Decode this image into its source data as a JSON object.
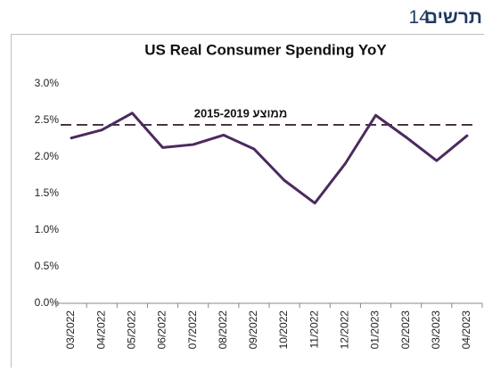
{
  "header": {
    "label": "תרשים",
    "number": "14"
  },
  "chart_data": {
    "type": "line",
    "title": "US Real Consumer Spending YoY",
    "categories": [
      "03/2022",
      "04/2022",
      "05/2022",
      "06/2022",
      "07/2022",
      "08/2022",
      "09/2022",
      "10/2022",
      "11/2022",
      "12/2022",
      "01/2023",
      "02/2023",
      "03/2023",
      "04/2023"
    ],
    "series": [
      {
        "name": "US Real Consumer Spending YoY",
        "color": "#4b2a5e",
        "values": [
          2.26,
          2.37,
          2.6,
          2.13,
          2.17,
          2.3,
          2.11,
          1.68,
          1.37,
          1.91,
          2.57,
          2.27,
          1.95,
          2.29
        ]
      }
    ],
    "reference_line": {
      "label": "ממוצע 2015-2019",
      "value": 2.44,
      "color": "#3d2b3d"
    },
    "ylim": [
      0,
      3
    ],
    "yticks": [
      {
        "value": 0,
        "label": "0.0%"
      },
      {
        "value": 0.5,
        "label": "0.5%"
      },
      {
        "value": 1,
        "label": "1.0%"
      },
      {
        "value": 1.5,
        "label": "1.5%"
      },
      {
        "value": 2,
        "label": "2.0%"
      },
      {
        "value": 2.5,
        "label": "2.5%"
      },
      {
        "value": 3,
        "label": "3.0%"
      }
    ],
    "grid": false
  }
}
